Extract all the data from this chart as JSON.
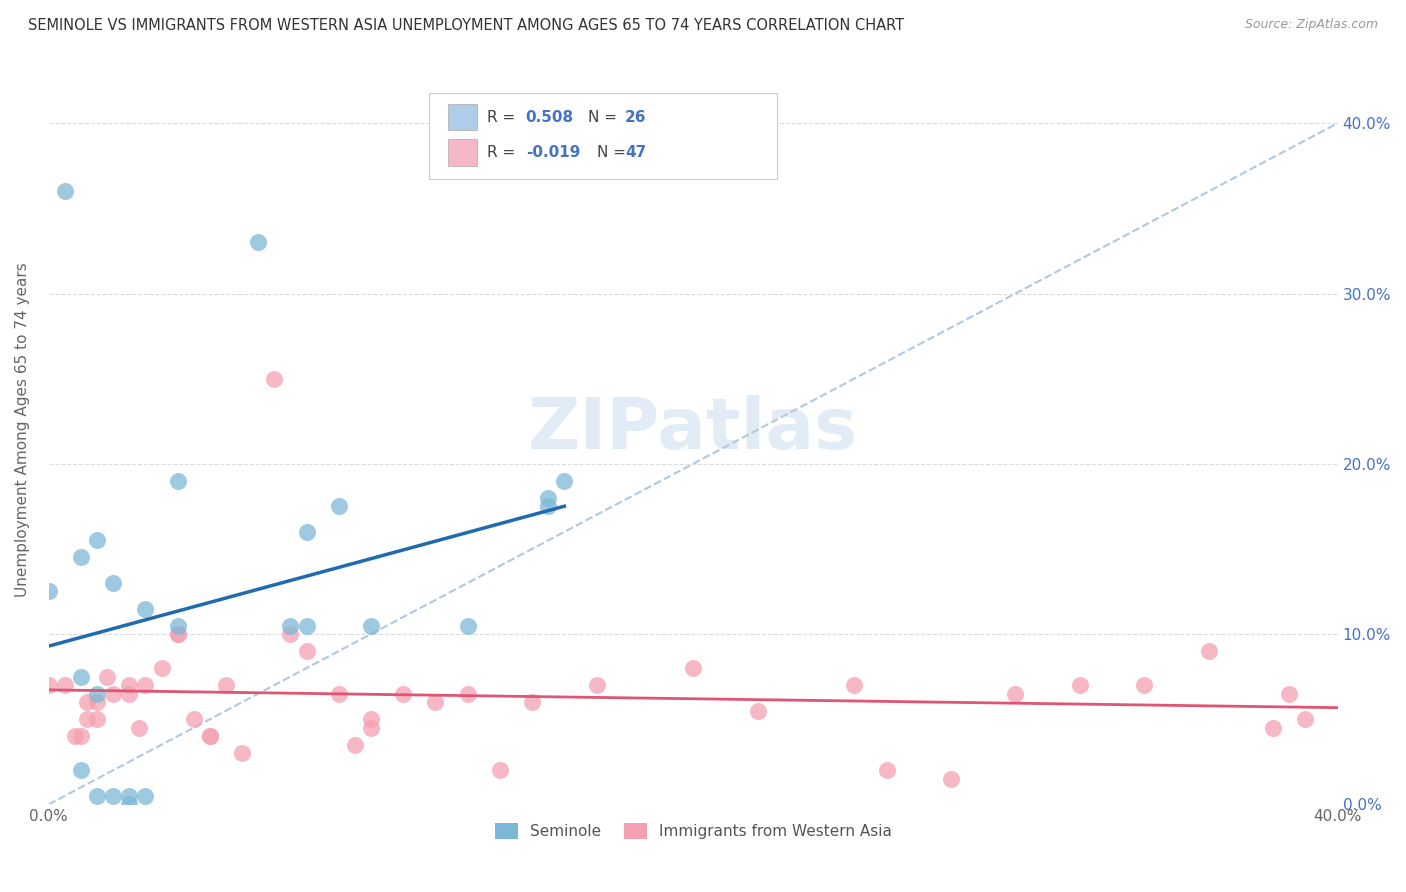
{
  "title": "SEMINOLE VS IMMIGRANTS FROM WESTERN ASIA UNEMPLOYMENT AMONG AGES 65 TO 74 YEARS CORRELATION CHART",
  "source": "Source: ZipAtlas.com",
  "ylabel": "Unemployment Among Ages 65 to 74 years",
  "xlim": [
    0.0,
    0.4
  ],
  "ylim": [
    0.0,
    0.44
  ],
  "seminole_color": "#7db8d8",
  "immigrants_color": "#f4a0b0",
  "trend_seminole_color": "#1f6bb0",
  "trend_immigrants_color": "#e05575",
  "trend_dashed_color": "#b0c8e0",
  "legend_blue_color": "#aecde8",
  "legend_pink_color": "#f4b8c8",
  "watermark_color": "#cde0f0",
  "seminole_points_x": [
    0.005,
    0.0,
    0.01,
    0.01,
    0.01,
    0.015,
    0.015,
    0.015,
    0.02,
    0.02,
    0.025,
    0.025,
    0.03,
    0.03,
    0.04,
    0.04,
    0.065,
    0.075,
    0.08,
    0.08,
    0.09,
    0.1,
    0.13,
    0.155,
    0.155,
    0.16
  ],
  "seminole_points_y": [
    0.36,
    0.125,
    0.02,
    0.075,
    0.145,
    0.005,
    0.065,
    0.155,
    0.005,
    0.13,
    0.0,
    0.005,
    0.005,
    0.115,
    0.19,
    0.105,
    0.33,
    0.105,
    0.105,
    0.16,
    0.175,
    0.105,
    0.105,
    0.175,
    0.18,
    0.19
  ],
  "immigrants_points_x": [
    0.0,
    0.005,
    0.008,
    0.01,
    0.012,
    0.012,
    0.015,
    0.015,
    0.018,
    0.02,
    0.025,
    0.025,
    0.028,
    0.03,
    0.035,
    0.04,
    0.04,
    0.045,
    0.05,
    0.05,
    0.055,
    0.06,
    0.07,
    0.075,
    0.08,
    0.09,
    0.095,
    0.1,
    0.1,
    0.11,
    0.12,
    0.13,
    0.14,
    0.15,
    0.17,
    0.2,
    0.22,
    0.25,
    0.26,
    0.28,
    0.3,
    0.32,
    0.34,
    0.36,
    0.38,
    0.385,
    0.39
  ],
  "immigrants_points_y": [
    0.07,
    0.07,
    0.04,
    0.04,
    0.05,
    0.06,
    0.05,
    0.06,
    0.075,
    0.065,
    0.07,
    0.065,
    0.045,
    0.07,
    0.08,
    0.1,
    0.1,
    0.05,
    0.04,
    0.04,
    0.07,
    0.03,
    0.25,
    0.1,
    0.09,
    0.065,
    0.035,
    0.045,
    0.05,
    0.065,
    0.06,
    0.065,
    0.02,
    0.06,
    0.07,
    0.08,
    0.055,
    0.07,
    0.02,
    0.015,
    0.065,
    0.07,
    0.07,
    0.09,
    0.045,
    0.065,
    0.05
  ],
  "background_color": "#ffffff",
  "grid_color": "#cccccc",
  "xtick_labels": [
    "0.0%",
    "",
    "",
    "",
    "",
    "",
    "",
    "",
    "40.0%"
  ],
  "ytick_labels_right": [
    "0.0%",
    "10.0%",
    "20.0%",
    "30.0%",
    "40.0%"
  ]
}
